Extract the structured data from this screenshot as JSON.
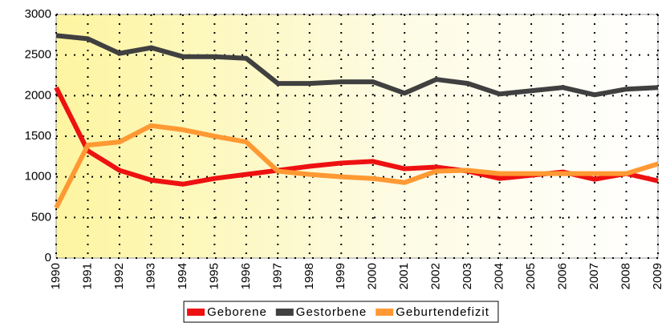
{
  "chart_data": {
    "type": "line",
    "categories": [
      "1990",
      "1991",
      "1992",
      "1993",
      "1994",
      "1995",
      "1996",
      "1997",
      "1998",
      "1999",
      "2000",
      "2001",
      "2002",
      "2003",
      "2004",
      "2005",
      "2006",
      "2007",
      "2008",
      "2009"
    ],
    "series": [
      {
        "name": "Geborene",
        "color": "#ee1111",
        "values": [
          2100,
          1320,
          1080,
          960,
          910,
          980,
          1030,
          1080,
          1130,
          1170,
          1190,
          1100,
          1120,
          1070,
          980,
          1020,
          1060,
          970,
          1040,
          950
        ]
      },
      {
        "name": "Gestorbene",
        "color": "#404040",
        "values": [
          2740,
          2700,
          2520,
          2590,
          2480,
          2480,
          2460,
          2150,
          2150,
          2170,
          2170,
          2030,
          2200,
          2150,
          2020,
          2060,
          2100,
          2010,
          2080,
          2100
        ]
      },
      {
        "name": "Geburtendefizit",
        "color": "#ff9933",
        "values": [
          620,
          1390,
          1430,
          1630,
          1580,
          1500,
          1430,
          1070,
          1030,
          1000,
          980,
          930,
          1070,
          1080,
          1040,
          1040,
          1040,
          1040,
          1040,
          1160
        ]
      }
    ],
    "ylim": [
      0,
      3000
    ],
    "yticks": [
      0,
      500,
      1000,
      1500,
      2000,
      2500,
      3000
    ],
    "grid": true,
    "legend": "bottom"
  }
}
